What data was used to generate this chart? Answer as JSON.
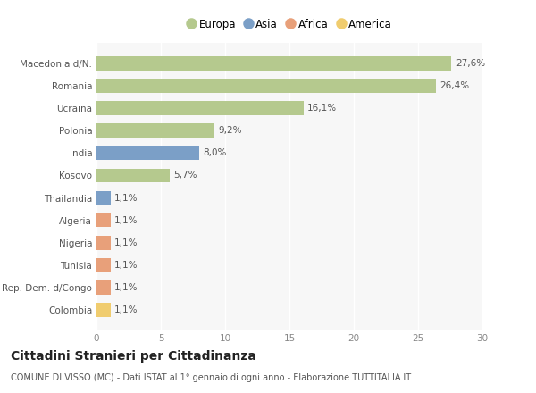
{
  "categories": [
    "Macedonia d/N.",
    "Romania",
    "Ucraina",
    "Polonia",
    "India",
    "Kosovo",
    "Thailandia",
    "Algeria",
    "Nigeria",
    "Tunisia",
    "Rep. Dem. d/Congo",
    "Colombia"
  ],
  "values": [
    27.6,
    26.4,
    16.1,
    9.2,
    8.0,
    5.7,
    1.1,
    1.1,
    1.1,
    1.1,
    1.1,
    1.1
  ],
  "labels": [
    "27,6%",
    "26,4%",
    "16,1%",
    "9,2%",
    "8,0%",
    "5,7%",
    "1,1%",
    "1,1%",
    "1,1%",
    "1,1%",
    "1,1%",
    "1,1%"
  ],
  "colors": [
    "#b5c98e",
    "#b5c98e",
    "#b5c98e",
    "#b5c98e",
    "#7b9fc7",
    "#b5c98e",
    "#7b9fc7",
    "#e8a07a",
    "#e8a07a",
    "#e8a07a",
    "#e8a07a",
    "#f0cc6e"
  ],
  "legend_labels": [
    "Europa",
    "Asia",
    "Africa",
    "America"
  ],
  "legend_colors": [
    "#b5c98e",
    "#7b9fc7",
    "#e8a07a",
    "#f0cc6e"
  ],
  "title": "Cittadini Stranieri per Cittadinanza",
  "subtitle": "COMUNE DI VISSO (MC) - Dati ISTAT al 1° gennaio di ogni anno - Elaborazione TUTTITALIA.IT",
  "xlim": [
    0,
    30
  ],
  "xticks": [
    0,
    5,
    10,
    15,
    20,
    25,
    30
  ],
  "background_color": "#ffffff",
  "plot_bg_color": "#f7f7f7",
  "bar_height": 0.62,
  "label_fontsize": 7.5,
  "tick_fontsize": 7.5,
  "title_fontsize": 10,
  "subtitle_fontsize": 7
}
